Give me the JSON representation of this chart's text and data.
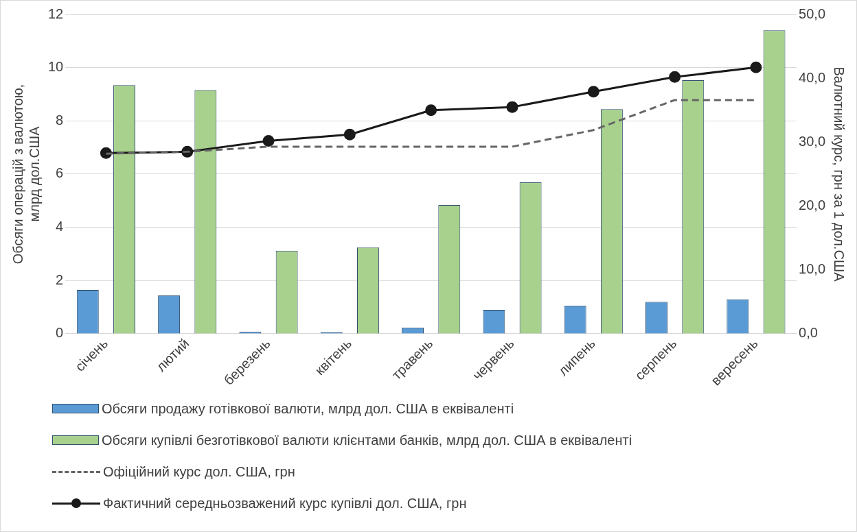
{
  "chart_data": {
    "type": "bar",
    "categories": [
      "січень",
      "лютий",
      "березень",
      "квітень",
      "травень",
      "червень",
      "липень",
      "серпень",
      "вересень"
    ],
    "ylabel": "Обсяги операцій з валютою,\nмлрд дол.США",
    "y2label": "Валютний курс, грн за 1 дол.США",
    "ylim": [
      0,
      12
    ],
    "yticks": [
      0,
      2,
      4,
      6,
      8,
      10,
      12
    ],
    "y2lim": [
      0,
      50
    ],
    "y2ticks": [
      {
        "value": 0,
        "label": "0,0"
      },
      {
        "value": 10,
        "label": "10,0"
      },
      {
        "value": 20,
        "label": "20,0"
      },
      {
        "value": 30,
        "label": "30,0"
      },
      {
        "value": 40,
        "label": "40,0"
      },
      {
        "value": 50,
        "label": "50,0"
      }
    ],
    "grid": "y",
    "legend": "bottom",
    "series": [
      {
        "name": "Обсяги продажу готівкової валюти, млрд дол. США в еквіваленті",
        "color": "#5b9bd5",
        "values": [
          1.65,
          1.44,
          0.08,
          0.07,
          0.24,
          0.9,
          1.06,
          1.2,
          1.3
        ]
      },
      {
        "name": "Обсяги купівлі безготівкової валюти клієнтами банків, млрд дол. США в еквіваленті",
        "color": "#a9d18e",
        "values": [
          9.34,
          9.16,
          3.12,
          3.25,
          4.84,
          5.69,
          8.44,
          9.53,
          11.4
        ]
      },
      {
        "name": "Офіційний курс дол. США, грн",
        "type": "line",
        "axis": "y2",
        "color": "#666666",
        "line_style": "dashed",
        "marker": "none",
        "values": [
          28.2,
          28.5,
          29.3,
          29.3,
          29.3,
          29.3,
          31.9,
          36.6,
          36.6
        ]
      },
      {
        "name": "Фактичний середньозважений курс купівлі дол. США, грн",
        "type": "line",
        "axis": "y2",
        "color": "#1a1a1a",
        "line_style": "solid",
        "marker": "circle",
        "values": [
          28.3,
          28.5,
          30.2,
          31.2,
          35.0,
          35.5,
          37.9,
          40.2,
          41.7
        ]
      }
    ]
  }
}
